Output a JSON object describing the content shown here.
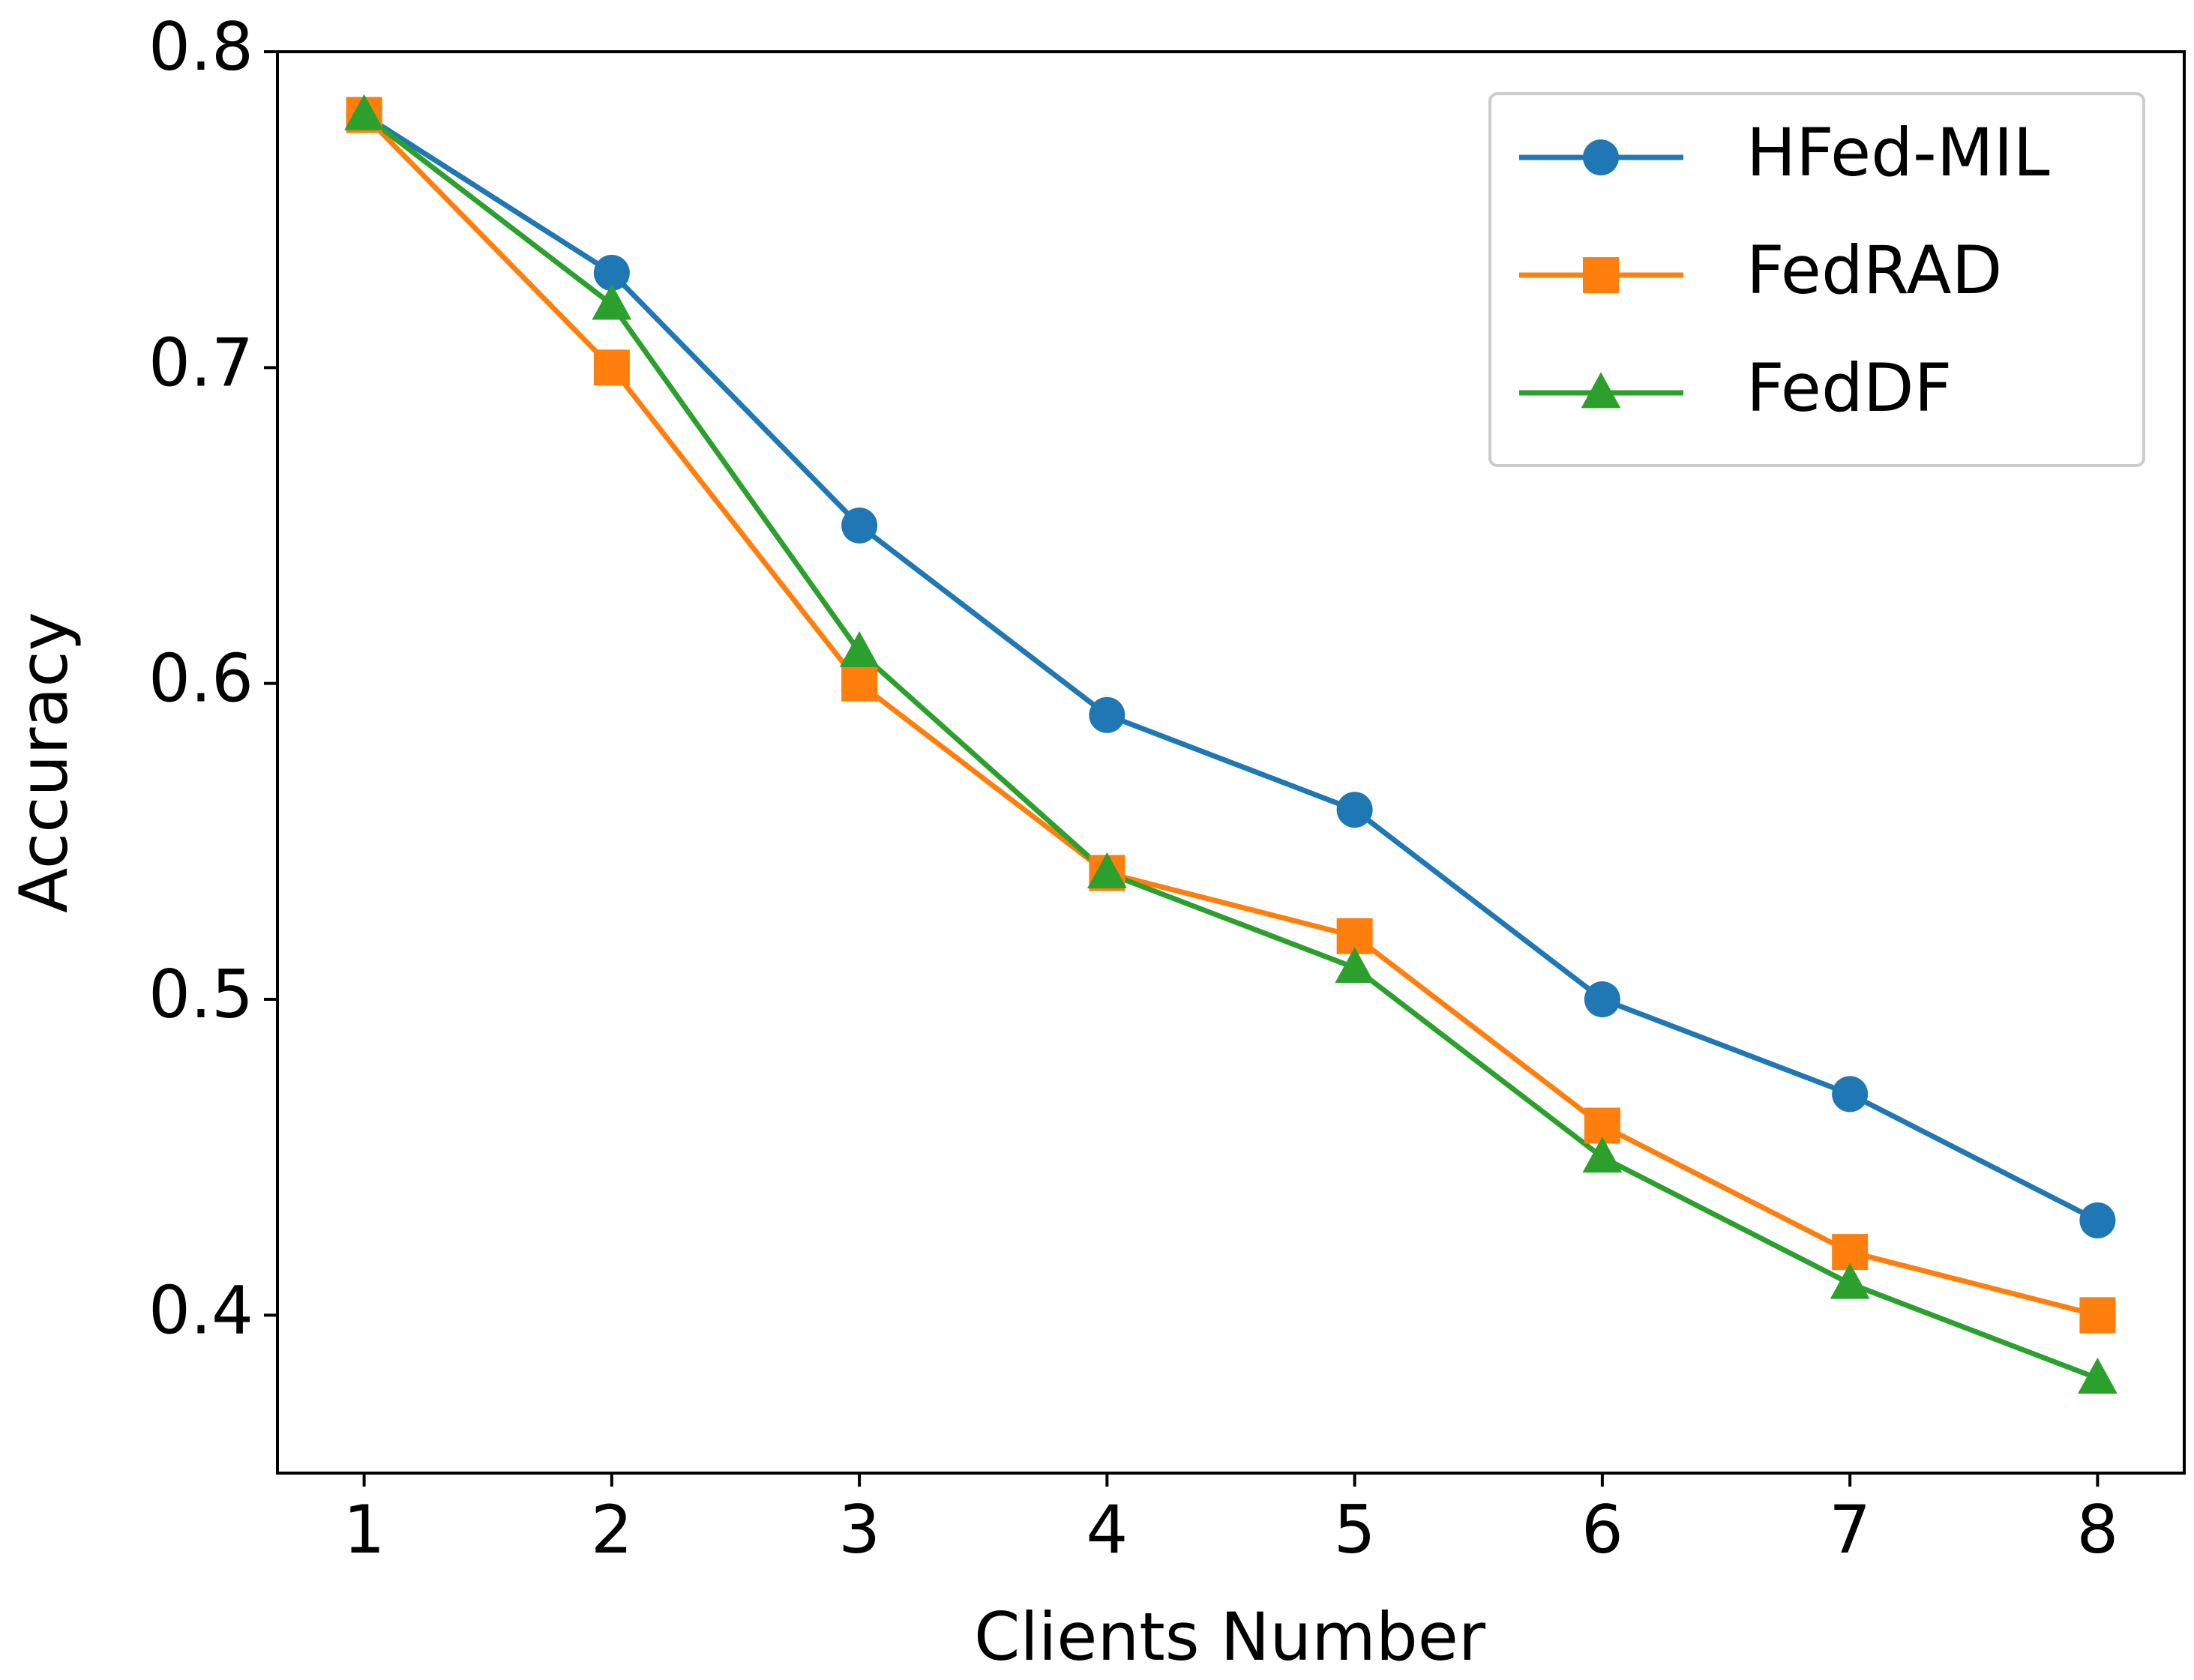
{
  "chart_data": {
    "type": "line",
    "xlabel": "Clients Number",
    "ylabel": "Accuracy",
    "x": [
      1,
      2,
      3,
      4,
      5,
      6,
      7,
      8
    ],
    "series": [
      {
        "name": "HFed-MIL",
        "color": "#1f77b4",
        "marker": "circle",
        "values": [
          0.78,
          0.73,
          0.65,
          0.59,
          0.56,
          0.5,
          0.47,
          0.43
        ]
      },
      {
        "name": "FedRAD",
        "color": "#ff7f0e",
        "marker": "square",
        "values": [
          0.78,
          0.7,
          0.6,
          0.54,
          0.52,
          0.46,
          0.42,
          0.4
        ]
      },
      {
        "name": "FedDF",
        "color": "#2ca02c",
        "marker": "triangle",
        "values": [
          0.78,
          0.72,
          0.61,
          0.54,
          0.51,
          0.45,
          0.41,
          0.38
        ]
      }
    ],
    "xlim": [
      0.65,
      8.35
    ],
    "xticks": [
      1,
      2,
      3,
      4,
      5,
      6,
      7,
      8
    ],
    "ylim": [
      0.35,
      0.8
    ],
    "yticks": [
      0.4,
      0.5,
      0.6,
      0.7,
      0.8
    ],
    "legend": "upper right"
  }
}
